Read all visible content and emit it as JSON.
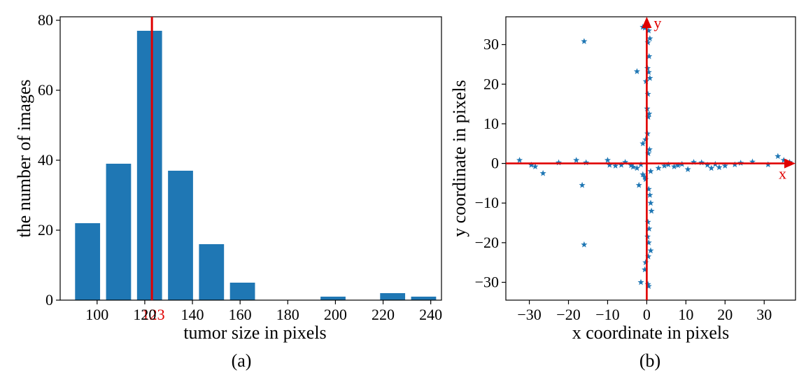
{
  "colors": {
    "bar": "#1f77b4",
    "marker": "#1f77b4",
    "accent": "#e00000",
    "axis": "#000000"
  },
  "chart_data": [
    {
      "type": "bar",
      "panel_label": "(a)",
      "xlabel": "tumor size in pixels",
      "ylabel": "the number of images",
      "x": [
        96,
        109,
        122,
        135,
        148,
        161,
        199,
        224,
        237
      ],
      "values": [
        22,
        39,
        77,
        37,
        16,
        5,
        1,
        2,
        1
      ],
      "xlim": [
        84.5,
        244.5
      ],
      "ylim": [
        0,
        81
      ],
      "xticks": [
        100,
        120,
        140,
        160,
        180,
        200,
        220,
        240
      ],
      "yticks": [
        0,
        20,
        40,
        60,
        80
      ],
      "bar_width": 10.5,
      "reference_line": {
        "x": 123,
        "label": "123"
      },
      "grid": false
    },
    {
      "type": "scatter",
      "panel_label": "(b)",
      "marker": "star",
      "xlabel": "x coordinate in pixels",
      "ylabel": "y coordinate in pixels",
      "xlim": [
        -36,
        38
      ],
      "ylim": [
        -34.5,
        37
      ],
      "xticks": [
        -30,
        -20,
        -10,
        0,
        10,
        20,
        30
      ],
      "yticks": [
        -30,
        -20,
        -10,
        0,
        10,
        20,
        30
      ],
      "arrow_labels": {
        "x": "x",
        "y": "y"
      },
      "grid": false,
      "points": [
        [
          -32.5,
          0.8
        ],
        [
          -29.5,
          -0.4
        ],
        [
          -28.5,
          -0.8
        ],
        [
          -26.5,
          -2.5
        ],
        [
          -22.5,
          0.2
        ],
        [
          -18,
          0.8
        ],
        [
          -16.5,
          -5.5
        ],
        [
          -15.5,
          0.2
        ],
        [
          -10,
          0.8
        ],
        [
          -9.5,
          -0.4
        ],
        [
          -8,
          -0.6
        ],
        [
          -6.5,
          -0.4
        ],
        [
          -5.5,
          0.3
        ],
        [
          -4,
          -0.5
        ],
        [
          -3.5,
          -0.9
        ],
        [
          -2.5,
          -1.2
        ],
        [
          -2,
          -5.5
        ],
        [
          -1.5,
          -0.3
        ],
        [
          -1,
          -2.8
        ],
        [
          -0.5,
          -3.5
        ],
        [
          1,
          -2
        ],
        [
          3,
          -1.2
        ],
        [
          4.5,
          -0.6
        ],
        [
          5.5,
          -0.3
        ],
        [
          7,
          -0.8
        ],
        [
          8,
          -0.5
        ],
        [
          9,
          -0.2
        ],
        [
          10.5,
          -1.5
        ],
        [
          12,
          0.3
        ],
        [
          14,
          0.2
        ],
        [
          15.5,
          -0.4
        ],
        [
          16.5,
          -1.2
        ],
        [
          17.5,
          -0.2
        ],
        [
          18.5,
          -1.0
        ],
        [
          20,
          -0.6
        ],
        [
          22.5,
          -0.3
        ],
        [
          24,
          0.1
        ],
        [
          27,
          0.4
        ],
        [
          31,
          -0.3
        ],
        [
          33.5,
          1.8
        ],
        [
          35,
          0.8
        ],
        [
          36.5,
          0.3
        ],
        [
          -16,
          30.8
        ],
        [
          -16,
          -20.5
        ],
        [
          -2.5,
          23.2
        ],
        [
          -1,
          34.4
        ],
        [
          -0.5,
          34.2
        ],
        [
          0.5,
          33.5
        ],
        [
          0.8,
          31.5
        ],
        [
          0.3,
          30.5
        ],
        [
          0.6,
          27
        ],
        [
          0.2,
          24
        ],
        [
          0.5,
          23
        ],
        [
          0.8,
          21.5
        ],
        [
          -0.2,
          20.7
        ],
        [
          0.3,
          17.5
        ],
        [
          0.1,
          13.8
        ],
        [
          0.6,
          12.5
        ],
        [
          0.4,
          11.7
        ],
        [
          0.2,
          7.5
        ],
        [
          -0.3,
          6
        ],
        [
          -1,
          5
        ],
        [
          0.7,
          3.5
        ],
        [
          0.4,
          2.5
        ],
        [
          -0.3,
          -4
        ],
        [
          0.5,
          -6.5
        ],
        [
          0.8,
          -8
        ],
        [
          1,
          -10
        ],
        [
          1.2,
          -12
        ],
        [
          0.3,
          -14.8
        ],
        [
          0.6,
          -16.5
        ],
        [
          0.2,
          -18.5
        ],
        [
          0.5,
          -20
        ],
        [
          1,
          -22
        ],
        [
          0.4,
          -23.5
        ],
        [
          -0.3,
          -25
        ],
        [
          -0.5,
          -26.8
        ],
        [
          -1.5,
          -30
        ],
        [
          0.3,
          -30.5
        ],
        [
          0.5,
          -31
        ]
      ]
    }
  ]
}
